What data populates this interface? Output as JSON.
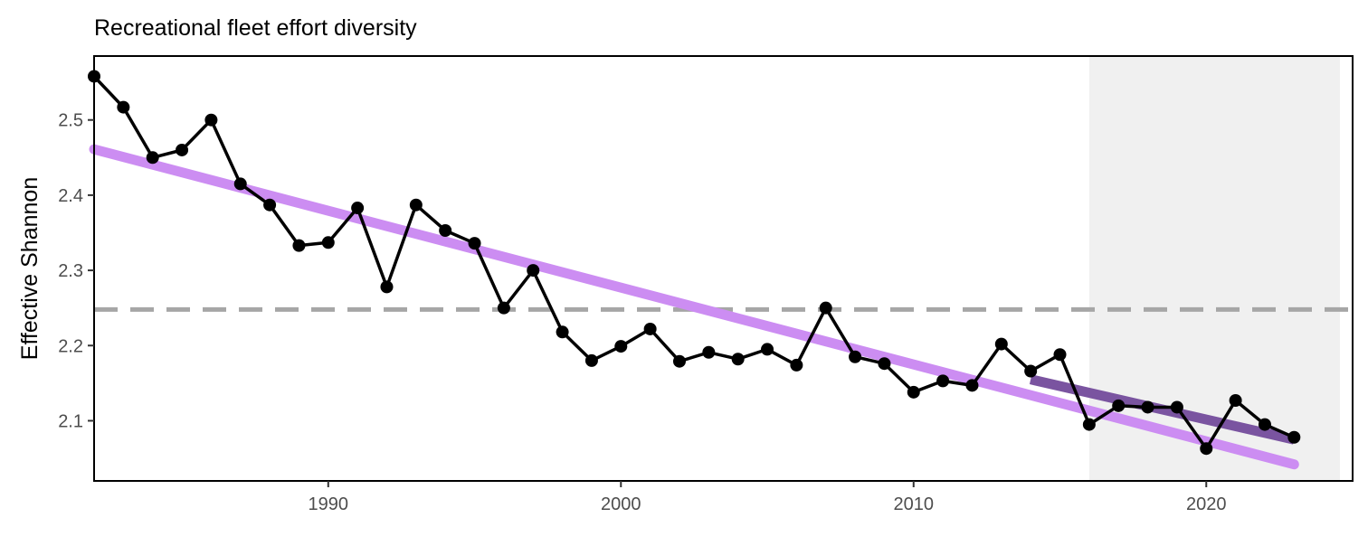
{
  "chart_data": {
    "type": "line",
    "title": "Recreational fleet effort diversity",
    "xlabel": "",
    "ylabel": "Effective Shannon",
    "xlim": [
      1982,
      2025
    ],
    "ylim": [
      2.02,
      2.585
    ],
    "xticks": [
      1990,
      2000,
      2010,
      2020
    ],
    "yticks": [
      2.1,
      2.2,
      2.3,
      2.4,
      2.5
    ],
    "ytick_labels": [
      "2.1",
      "2.2",
      "2.3",
      "2.4",
      "2.5"
    ],
    "grid": false,
    "series": [
      {
        "x": [
          1982,
          1983,
          1984,
          1985,
          1986,
          1987,
          1988,
          1989,
          1990,
          1991,
          1992,
          1993,
          1994,
          1995,
          1996,
          1997,
          1998,
          1999,
          2000,
          2001,
          2002,
          2003,
          2004,
          2005,
          2006,
          2007,
          2008,
          2009,
          2010,
          2011,
          2012,
          2013,
          2014,
          2015,
          2016,
          2017,
          2018,
          2019,
          2020,
          2021,
          2022,
          2023
        ],
        "values": [
          2.558,
          2.517,
          2.45,
          2.46,
          2.5,
          2.415,
          2.387,
          2.333,
          2.337,
          2.383,
          2.278,
          2.387,
          2.353,
          2.336,
          2.25,
          2.3,
          2.218,
          2.18,
          2.199,
          2.222,
          2.179,
          2.191,
          2.182,
          2.195,
          2.174,
          2.25,
          2.185,
          2.176,
          2.138,
          2.153,
          2.147,
          2.202,
          2.166,
          2.188,
          2.095,
          2.12,
          2.118,
          2.118,
          2.063,
          2.127,
          2.095,
          2.078
        ],
        "color": "#000000"
      }
    ],
    "overall_trend": {
      "x": [
        1982,
        2023
      ],
      "y": [
        2.461,
        2.042
      ],
      "color": "#cc8df2"
    },
    "recent_trend": {
      "x": [
        2014,
        2023
      ],
      "y": [
        2.155,
        2.075
      ],
      "color": "#7a54a0"
    },
    "reference_line": {
      "y": 2.248,
      "color": "#a6a6a6"
    },
    "shaded_region": {
      "x": [
        2016,
        2025
      ],
      "color": "#f0f0f0"
    }
  }
}
